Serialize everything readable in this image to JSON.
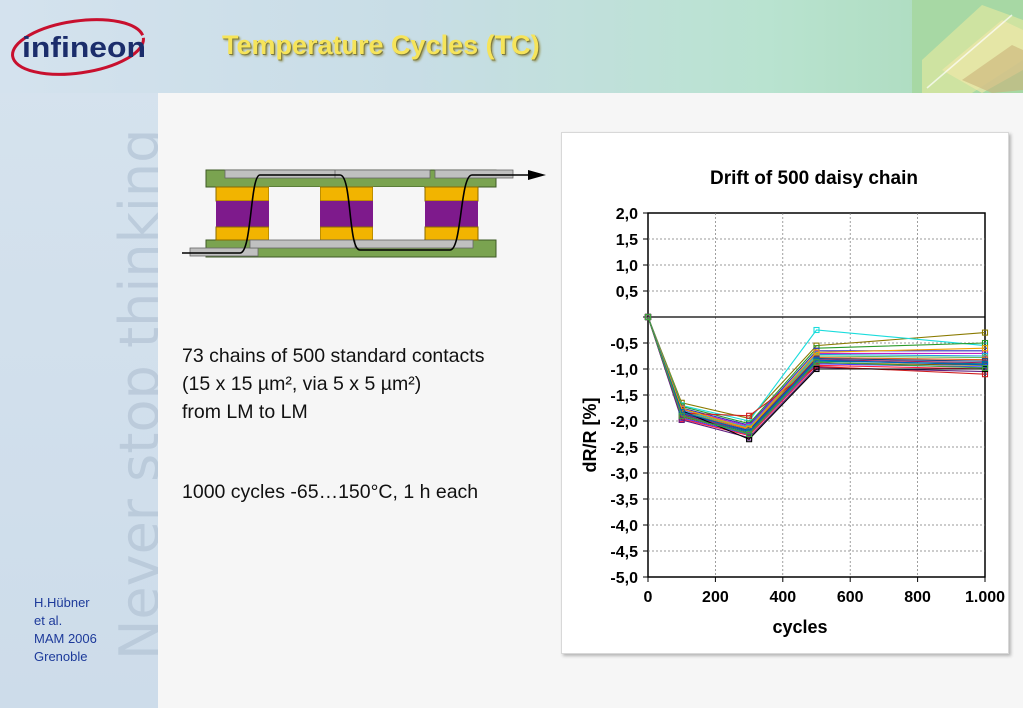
{
  "slide": {
    "title": "Temperature Cycles (TC)",
    "logo_text": "infineon",
    "watermark_text": "Never stop thinking"
  },
  "description": {
    "line1": "73 chains of 500 standard contacts",
    "line2": "(15 x 15 µm², via 5 x 5 µm²)",
    "line3": "from LM to LM",
    "line4": "1000 cycles -65…150°C, 1 h each"
  },
  "author": {
    "name": "H.Hübner",
    "etal": "et al.",
    "conference": "MAM 2006",
    "city": "Grenoble"
  },
  "colors": {
    "title": "#f6e45a",
    "pad_green": "#7aa350",
    "via_orange": "#f2b400",
    "dielectric_purple": "#7e1a8c",
    "metal_gray": "#c0c0c0",
    "author_blue": "#1d3a9a"
  },
  "chart_data": {
    "type": "line",
    "title": "Drift of 500 daisy chain",
    "xlabel": "cycles",
    "ylabel": "dR/R [%]",
    "xlim": [
      0,
      1000
    ],
    "ylim": [
      -5.0,
      2.0
    ],
    "xticks": [
      0,
      200,
      400,
      600,
      800,
      1000
    ],
    "xtick_labels": [
      "0",
      "200",
      "400",
      "600",
      "800",
      "1.000"
    ],
    "yticks": [
      2.0,
      1.5,
      1.0,
      0.5,
      0.0,
      -0.5,
      -1.0,
      -1.5,
      -2.0,
      -2.5,
      -3.0,
      -3.5,
      -4.0,
      -4.5,
      -5.0
    ],
    "ytick_labels": [
      "2,0",
      "1,5",
      "1,0",
      "0,5",
      "",
      "-0,5",
      "-1,0",
      "-1,5",
      "-2,0",
      "-2,5",
      "-3,0",
      "-3,5",
      "-4,0",
      "-4,5",
      "-5,0"
    ],
    "grid": true,
    "legend": "none",
    "x": [
      0,
      100,
      300,
      500,
      1000
    ],
    "series": [
      {
        "values": [
          0,
          -1.65,
          -1.95,
          -0.55,
          -0.3
        ],
        "color": "#8a7a00"
      },
      {
        "values": [
          0,
          -1.7,
          -2.0,
          -0.25,
          -0.55
        ],
        "color": "#1adcdc"
      },
      {
        "values": [
          0,
          -1.72,
          -2.05,
          -0.6,
          -0.5
        ],
        "color": "#2a9a2a"
      },
      {
        "values": [
          0,
          -1.75,
          -2.08,
          -0.65,
          -0.65
        ],
        "color": "#3030c0"
      },
      {
        "values": [
          0,
          -1.78,
          -2.1,
          -0.7,
          -0.7
        ],
        "color": "#c020c0"
      },
      {
        "values": [
          0,
          -1.8,
          -2.12,
          -0.72,
          -0.75
        ],
        "color": "#20a0e0"
      },
      {
        "values": [
          0,
          -1.82,
          -2.14,
          -0.75,
          -0.78
        ],
        "color": "#60c060"
      },
      {
        "values": [
          0,
          -1.84,
          -2.16,
          -0.78,
          -0.82
        ],
        "color": "#e06020"
      },
      {
        "values": [
          0,
          -1.86,
          -2.18,
          -0.8,
          -0.85
        ],
        "color": "#204080"
      },
      {
        "values": [
          0,
          -1.88,
          -2.2,
          -0.82,
          -0.88
        ],
        "color": "#a02060"
      },
      {
        "values": [
          0,
          -1.9,
          -2.22,
          -0.85,
          -0.9
        ],
        "color": "#008080"
      },
      {
        "values": [
          0,
          -1.92,
          -2.24,
          -0.88,
          -0.93
        ],
        "color": "#806000"
      },
      {
        "values": [
          0,
          -1.94,
          -2.26,
          -0.9,
          -0.96
        ],
        "color": "#4040ff"
      },
      {
        "values": [
          0,
          -1.96,
          -2.28,
          -0.93,
          -1.0
        ],
        "color": "#ff2040"
      },
      {
        "values": [
          0,
          -1.98,
          -2.32,
          -0.97,
          -1.05
        ],
        "color": "#602080"
      },
      {
        "values": [
          0,
          -1.85,
          -1.9,
          -0.95,
          -1.1
        ],
        "color": "#d02020"
      },
      {
        "values": [
          0,
          -1.8,
          -2.35,
          -1.0,
          -1.0
        ],
        "color": "#000000"
      },
      {
        "values": [
          0,
          -1.76,
          -2.15,
          -0.68,
          -0.6
        ],
        "color": "#f0a000"
      },
      {
        "values": [
          0,
          -1.83,
          -2.2,
          -0.83,
          -0.92
        ],
        "color": "#0060c0"
      },
      {
        "values": [
          0,
          -1.9,
          -2.25,
          -0.87,
          -0.98
        ],
        "color": "#40a040"
      }
    ]
  }
}
